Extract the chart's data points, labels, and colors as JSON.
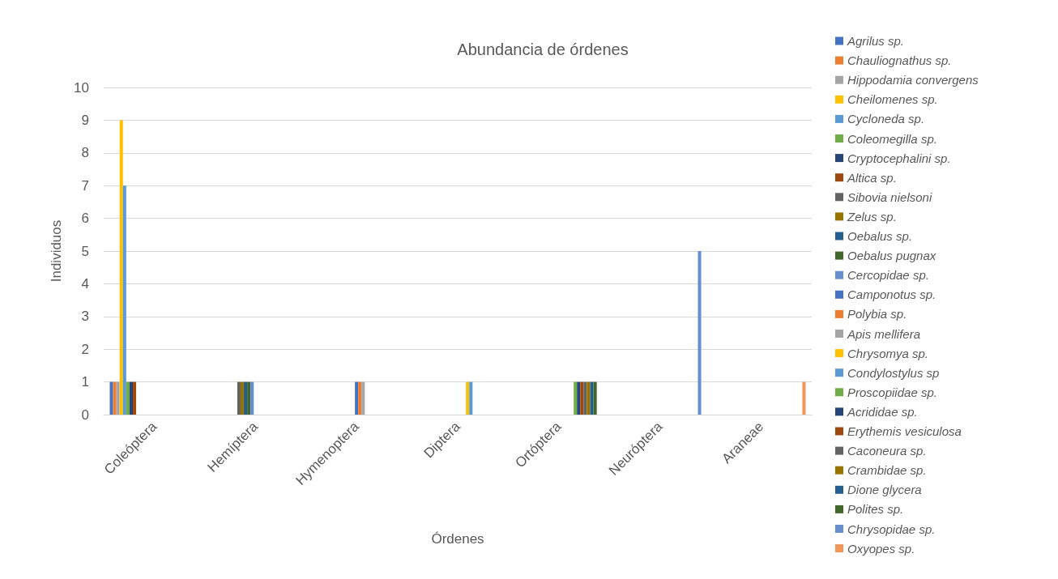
{
  "chart_data": {
    "type": "bar",
    "title": "Abundancia de órdenes",
    "xlabel": "Órdenes",
    "ylabel": "Individuos",
    "categories": [
      "Coleóptera",
      "Hemíptera",
      "Hymenoptera",
      "Diptera",
      "Ortóptera",
      "Neuróptera",
      "Araneae"
    ],
    "ylim": [
      0,
      10
    ],
    "yticks": [
      0,
      1,
      2,
      3,
      4,
      5,
      6,
      7,
      8,
      9,
      10
    ],
    "grid": "y",
    "legend": "right",
    "series": [
      {
        "name": "Agrilus sp.",
        "color": "#4472c4",
        "values": [
          1,
          null,
          null,
          null,
          null,
          null,
          null
        ]
      },
      {
        "name": "Chauliognathus sp.",
        "color": "#ed7d31",
        "values": [
          1,
          null,
          null,
          null,
          null,
          null,
          null
        ]
      },
      {
        "name": "Hippodamia convergens",
        "color": "#a5a5a5",
        "values": [
          1,
          null,
          null,
          null,
          null,
          null,
          null
        ]
      },
      {
        "name": "Cheilomenes sp.",
        "color": "#ffc000",
        "values": [
          9,
          null,
          null,
          null,
          null,
          null,
          null
        ]
      },
      {
        "name": "Cycloneda sp.",
        "color": "#5b9bd5",
        "values": [
          7,
          null,
          null,
          null,
          null,
          null,
          null
        ]
      },
      {
        "name": "Coleomegilla sp.",
        "color": "#70ad47",
        "values": [
          1,
          null,
          null,
          null,
          null,
          null,
          null
        ]
      },
      {
        "name": "Cryptocephalini sp.",
        "color": "#264478",
        "values": [
          1,
          null,
          null,
          null,
          null,
          null,
          null
        ]
      },
      {
        "name": "Altica sp.",
        "color": "#9e480e",
        "values": [
          1,
          null,
          null,
          null,
          null,
          null,
          null
        ]
      },
      {
        "name": "Sibovia nielsoni",
        "color": "#636363",
        "values": [
          null,
          1,
          null,
          null,
          null,
          null,
          null
        ]
      },
      {
        "name": "Zelus sp.",
        "color": "#997300",
        "values": [
          null,
          1,
          null,
          null,
          null,
          null,
          null
        ]
      },
      {
        "name": "Oebalus sp.",
        "color": "#255e91",
        "values": [
          null,
          1,
          null,
          null,
          null,
          null,
          null
        ]
      },
      {
        "name": "Oebalus pugnax",
        "color": "#43682b",
        "values": [
          null,
          1,
          null,
          null,
          null,
          null,
          null
        ]
      },
      {
        "name": "Cercopidae sp.",
        "color": "#698ed0",
        "values": [
          null,
          1,
          null,
          null,
          null,
          null,
          null
        ]
      },
      {
        "name": "Camponotus sp.",
        "color": "#4472c4",
        "values": [
          null,
          null,
          1,
          null,
          null,
          null,
          null
        ]
      },
      {
        "name": "Polybia sp.",
        "color": "#ed7d31",
        "values": [
          null,
          null,
          1,
          null,
          null,
          null,
          null
        ]
      },
      {
        "name": "Apis mellifera",
        "color": "#a5a5a5",
        "values": [
          null,
          null,
          1,
          null,
          null,
          null,
          null
        ]
      },
      {
        "name": "Chrysomya sp.",
        "color": "#ffc000",
        "values": [
          null,
          null,
          null,
          1,
          null,
          null,
          null
        ]
      },
      {
        "name": "Condylostylus sp",
        "color": "#5b9bd5",
        "values": [
          null,
          null,
          null,
          1,
          null,
          null,
          null
        ]
      },
      {
        "name": "Proscopiidae sp.",
        "color": "#70ad47",
        "values": [
          null,
          null,
          null,
          null,
          1,
          null,
          null
        ]
      },
      {
        "name": "Acrididae sp.",
        "color": "#264478",
        "values": [
          null,
          null,
          null,
          null,
          1,
          null,
          null
        ]
      },
      {
        "name": "Erythemis vesiculosa",
        "color": "#9e480e",
        "values": [
          null,
          null,
          null,
          null,
          1,
          null,
          null
        ]
      },
      {
        "name": "Caconeura sp.",
        "color": "#636363",
        "values": [
          null,
          null,
          null,
          null,
          1,
          null,
          null
        ]
      },
      {
        "name": "Crambidae sp.",
        "color": "#997300",
        "values": [
          null,
          null,
          null,
          null,
          1,
          null,
          null
        ]
      },
      {
        "name": "Dione glycera",
        "color": "#255e91",
        "values": [
          null,
          null,
          null,
          null,
          1,
          null,
          null
        ]
      },
      {
        "name": "Polites sp.",
        "color": "#43682b",
        "values": [
          null,
          null,
          null,
          null,
          1,
          null,
          null
        ]
      },
      {
        "name": "Chrysopidae sp.",
        "color": "#698ed0",
        "values": [
          null,
          null,
          null,
          null,
          null,
          5,
          null
        ]
      },
      {
        "name": "Oxyopes sp.",
        "color": "#f1975a",
        "values": [
          null,
          null,
          null,
          null,
          null,
          null,
          1
        ]
      }
    ]
  }
}
